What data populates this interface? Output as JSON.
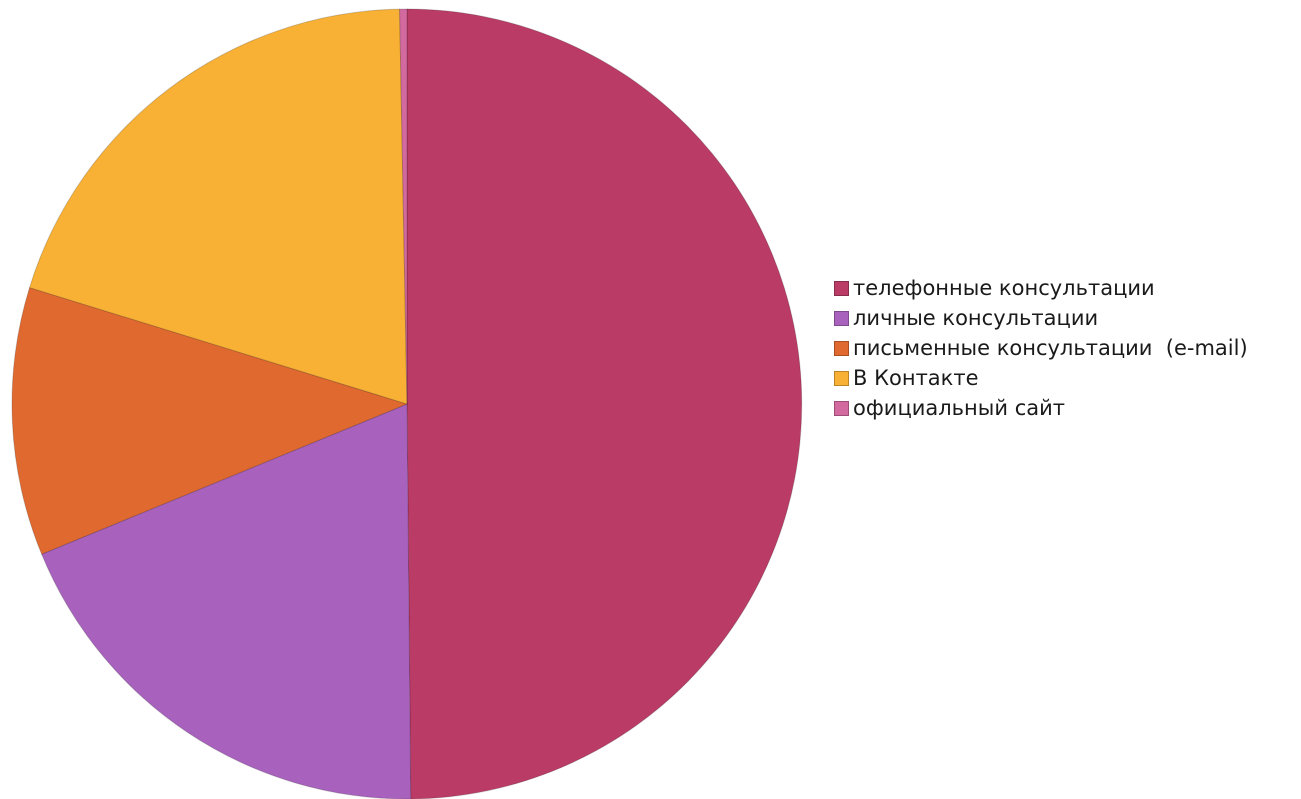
{
  "chart_data": {
    "type": "pie",
    "title": "",
    "slices": [
      {
        "label": "телефонные консультации",
        "value": 50,
        "color": "#B93B66"
      },
      {
        "label": "личные консультации",
        "value": 19,
        "color": "#A862BD"
      },
      {
        "label": "письменные консультации  (e-mail)",
        "value": 11,
        "color": "#E0692F"
      },
      {
        "label": "В Контакте",
        "value": 20,
        "color": "#F8B135"
      },
      {
        "label": "официальный сайт",
        "value": 0.3,
        "color": "#D2699F"
      }
    ],
    "legend_position": "right"
  }
}
